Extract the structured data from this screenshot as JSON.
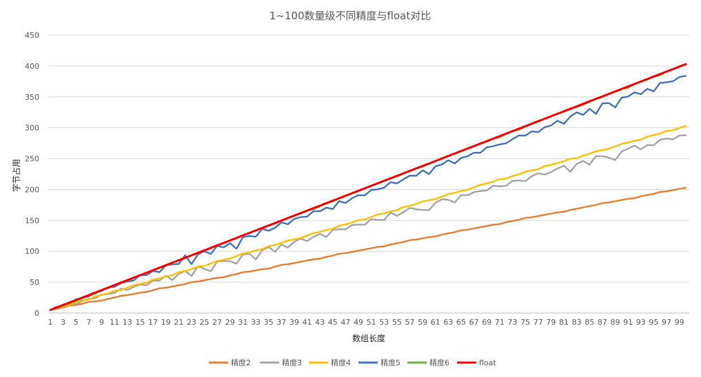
{
  "chart_data": {
    "type": "line",
    "title": "1~100数量级不同精度与float对比",
    "xlabel": "数组长度",
    "ylabel": "字节占用",
    "ylim": [
      0,
      450
    ],
    "yticks": [
      0,
      50,
      100,
      150,
      200,
      250,
      300,
      350,
      400,
      450
    ],
    "xticks": [
      1,
      3,
      5,
      7,
      9,
      11,
      13,
      15,
      17,
      19,
      21,
      23,
      25,
      27,
      29,
      31,
      33,
      35,
      37,
      39,
      41,
      43,
      45,
      47,
      49,
      51,
      53,
      55,
      57,
      59,
      61,
      63,
      65,
      67,
      69,
      71,
      73,
      75,
      77,
      79,
      81,
      83,
      85,
      87,
      89,
      91,
      93,
      95,
      97,
      99
    ],
    "x_range": [
      1,
      100
    ],
    "grid": true,
    "legend_position": "bottom",
    "series": [
      {
        "name": "精度2",
        "color": "#ED7D31",
        "start": 5,
        "end": 203,
        "noise": [
          0,
          0,
          0,
          1,
          0,
          0,
          1,
          0,
          -1,
          0,
          0,
          1,
          0,
          0,
          0,
          -1,
          0,
          1,
          0,
          0,
          0,
          0,
          1,
          0,
          0,
          0,
          0,
          -1,
          0,
          0,
          1,
          0,
          0,
          0,
          -1,
          0,
          1,
          0,
          0,
          0,
          0,
          0,
          -1,
          0,
          0,
          1,
          0,
          0,
          0,
          0,
          0,
          0,
          -1,
          0,
          0,
          0,
          1,
          0,
          0,
          0,
          -1,
          0,
          0,
          0,
          1,
          0,
          0,
          0,
          0,
          0,
          -1,
          0,
          0,
          0,
          1,
          0,
          0,
          0,
          0,
          0,
          -1,
          0,
          0,
          0,
          0,
          0,
          1,
          0,
          0,
          0,
          0,
          -1,
          0,
          0,
          0,
          1,
          0,
          0,
          0,
          0
        ]
      },
      {
        "name": "精度3",
        "color": "#A5A5A5",
        "start": 5,
        "end": 288,
        "noise": [
          0,
          2,
          -1,
          1,
          -2,
          0,
          1,
          -1,
          2,
          0,
          -1,
          3,
          -2,
          0,
          1,
          -3,
          2,
          -1,
          4,
          -6,
          1,
          3,
          -8,
          5,
          -2,
          -9,
          4,
          2,
          -1,
          -8,
          4,
          3,
          -10,
          2,
          5,
          -6,
          3,
          -5,
          2,
          4,
          -3,
          1,
          3,
          -5,
          4,
          2,
          -1,
          3,
          1,
          -2,
          4,
          0,
          -3,
          6,
          -2,
          1,
          5,
          0,
          -4,
          -7,
          2,
          5,
          1,
          -6,
          3,
          0,
          2,
          1,
          -1,
          4,
          0,
          -2,
          3,
          1,
          -3,
          2,
          4,
          -1,
          0,
          3,
          5,
          -8,
          2,
          4,
          -5,
          6,
          3,
          -2,
          -9,
          2,
          4,
          6,
          -3,
          1,
          -2,
          4,
          3,
          -1,
          2,
          0,
          1,
          0
        ]
      },
      {
        "name": "精度4",
        "color": "#FFC000",
        "start": 5,
        "end": 303,
        "noise": [
          0,
          1,
          0,
          -1,
          1,
          0,
          -1,
          1,
          0,
          0,
          1,
          -1,
          0,
          1,
          0,
          -1,
          1,
          0,
          0,
          -1,
          1,
          0,
          0,
          1,
          -1,
          0,
          1,
          0,
          -1,
          0,
          1,
          0,
          0,
          -1,
          1,
          0,
          0,
          1,
          0,
          -1,
          0,
          1,
          0,
          0,
          -1,
          1,
          0,
          0,
          1,
          -1,
          0,
          1,
          0,
          0,
          -1,
          1,
          0,
          0,
          1,
          0,
          -1,
          0,
          1,
          0,
          0,
          -1,
          0,
          1,
          0,
          0,
          1,
          -1,
          0,
          0,
          1,
          0,
          -1,
          1,
          0,
          0,
          0,
          1,
          -1,
          0,
          0,
          1,
          0,
          -1,
          0,
          1,
          0,
          0,
          -1,
          1,
          0,
          0,
          1,
          -1,
          0,
          0
        ]
      },
      {
        "name": "精度5",
        "color": "#4472C4",
        "start": 5,
        "end": 384,
        "noise": [
          0,
          1,
          0,
          -1,
          2,
          0,
          -1,
          1,
          0,
          2,
          -1,
          1,
          0,
          -2,
          3,
          -1,
          2,
          -4,
          3,
          1,
          -2,
          8,
          -10,
          2,
          3,
          -5,
          4,
          -2,
          1,
          -12,
          3,
          1,
          -4,
          5,
          -2,
          -1,
          4,
          -3,
          2,
          1,
          -2,
          3,
          -1,
          1,
          -5,
          4,
          -3,
          1,
          2,
          -2,
          3,
          0,
          -1,
          4,
          -2,
          1,
          3,
          -1,
          4,
          -6,
          3,
          2,
          5,
          -4,
          1,
          0,
          2,
          -2,
          3,
          1,
          0,
          -2,
          1,
          3,
          -1,
          2,
          -3,
          1,
          0,
          4,
          -5,
          3,
          6,
          -2,
          4,
          -8,
          5,
          2,
          -9,
          3,
          1,
          4,
          -3,
          2,
          -6,
          4,
          1,
          -1,
          2,
          0
        ]
      },
      {
        "name": "精度6",
        "color": "#70AD47",
        "start": 5,
        "end": 403,
        "noise": [
          0,
          0,
          0,
          -2,
          0,
          -1,
          0,
          -2,
          0,
          -1,
          0,
          0,
          -1,
          0,
          0,
          -1,
          0,
          0,
          -1,
          0,
          0,
          0,
          0,
          0,
          0,
          -1,
          0,
          0,
          0,
          0,
          0,
          0,
          0,
          0,
          0,
          -1,
          0,
          0,
          0,
          0,
          0,
          -2,
          -1,
          0,
          -1,
          0,
          0,
          0,
          0,
          0,
          0,
          0,
          0,
          0,
          -1,
          0,
          0,
          0,
          -1,
          0,
          0,
          0,
          0,
          0,
          0,
          0,
          0,
          0,
          -1,
          0,
          -2,
          0,
          0,
          -2,
          0,
          0,
          -1,
          0,
          0,
          0,
          0,
          0,
          -1,
          -2,
          0,
          0,
          -1,
          0,
          0,
          0,
          -2,
          0,
          0,
          -1,
          0,
          -2,
          0,
          0,
          0,
          0
        ]
      },
      {
        "name": "float",
        "color": "#FF0000",
        "start": 5,
        "end": 403,
        "noise": [
          0,
          0,
          0,
          0,
          0,
          0,
          0,
          0,
          0,
          0,
          0,
          0,
          0,
          0,
          0,
          0,
          0,
          0,
          0,
          0,
          0,
          0,
          0,
          0,
          0,
          0,
          0,
          0,
          0,
          0,
          0,
          0,
          0,
          0,
          0,
          0,
          0,
          0,
          0,
          0,
          0,
          0,
          0,
          0,
          0,
          0,
          0,
          0,
          0,
          0,
          0,
          0,
          0,
          0,
          0,
          0,
          0,
          0,
          0,
          0,
          0,
          0,
          0,
          0,
          0,
          0,
          0,
          0,
          0,
          0,
          0,
          0,
          0,
          0,
          0,
          0,
          0,
          0,
          0,
          0,
          0,
          0,
          0,
          0,
          0,
          0,
          0,
          0,
          0,
          0,
          0,
          0,
          0,
          0,
          0,
          0,
          0,
          0,
          0,
          0
        ]
      }
    ]
  }
}
